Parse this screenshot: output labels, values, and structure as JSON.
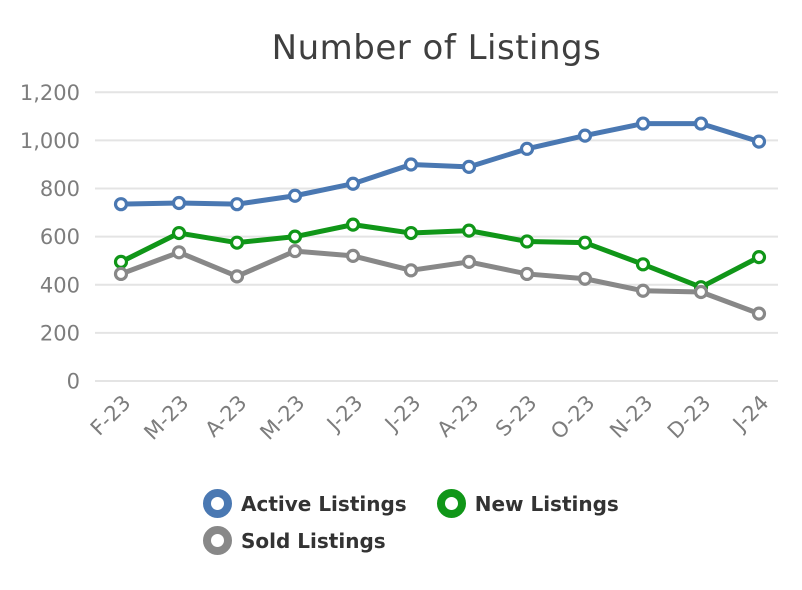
{
  "chart_data": {
    "type": "line",
    "title": "Number of Listings",
    "categories": [
      "F-23",
      "M-23",
      "A-23",
      "M-23",
      "J-23",
      "J-23",
      "A-23",
      "S-23",
      "O-23",
      "N-23",
      "D-23",
      "J-24"
    ],
    "series": [
      {
        "name": "Active Listings",
        "color": "#4a78b2",
        "values": [
          735,
          740,
          735,
          770,
          820,
          900,
          890,
          965,
          1020,
          1070,
          1070,
          995
        ]
      },
      {
        "name": "New Listings",
        "color": "#109618",
        "values": [
          495,
          615,
          575,
          600,
          650,
          615,
          625,
          580,
          575,
          485,
          390,
          515
        ]
      },
      {
        "name": "Sold Listings",
        "color": "#888888",
        "values": [
          445,
          535,
          435,
          540,
          520,
          460,
          495,
          445,
          425,
          375,
          370,
          280
        ]
      }
    ],
    "ylim": [
      0,
      1200
    ],
    "y_ticks": [
      {
        "value": 0,
        "label": "0"
      },
      {
        "value": 200,
        "label": "200"
      },
      {
        "value": 400,
        "label": "400"
      },
      {
        "value": 600,
        "label": "600"
      },
      {
        "value": 800,
        "label": "800"
      },
      {
        "value": 1000,
        "label": "1,000"
      },
      {
        "value": 1200,
        "label": "1,200"
      }
    ],
    "grid": true,
    "legend_position": "bottom",
    "styles": {
      "background": "#ffffff",
      "grid_color": "#e4e4e4",
      "axis_label_color": "#7d7d7d",
      "title_color": "#3f3f3f",
      "legend_text_color": "#333333",
      "marker_fill": "#ffffff"
    }
  }
}
